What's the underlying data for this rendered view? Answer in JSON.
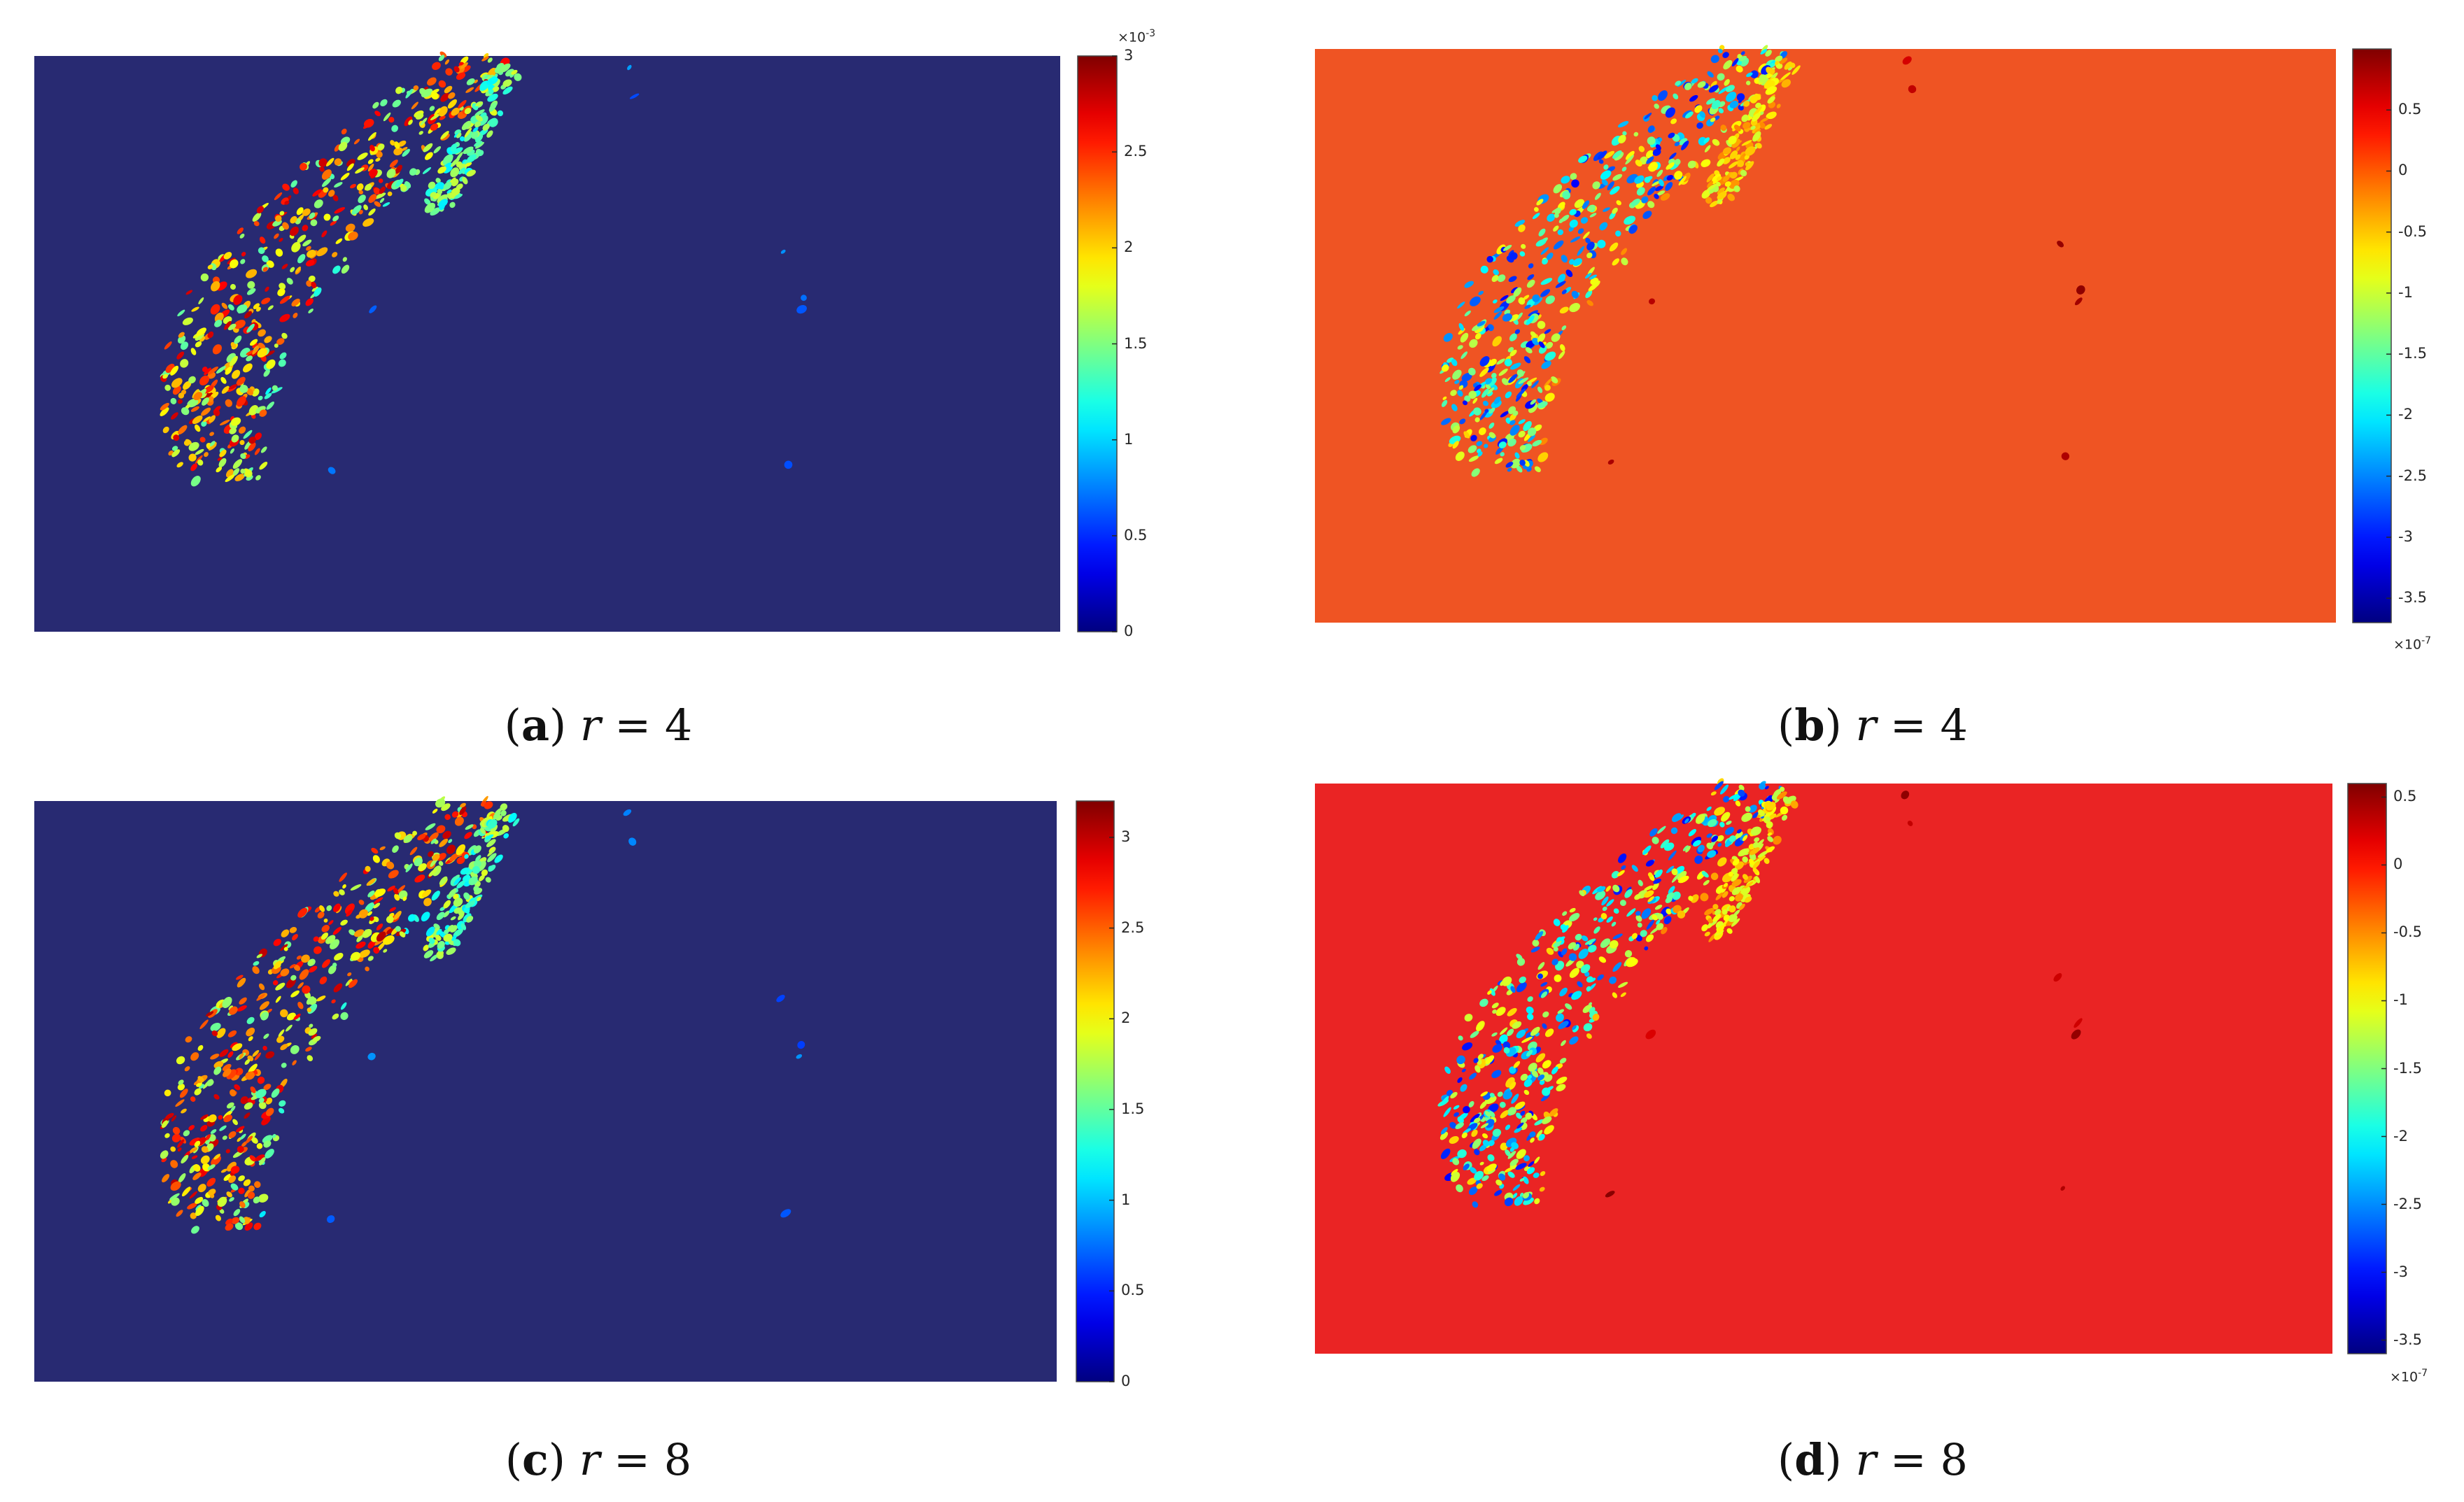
{
  "chart_data": [
    {
      "type": "heatmap",
      "panel": "a",
      "caption_letter": "a",
      "caption_param": "r",
      "caption_value": "4",
      "background_color": "#282a72",
      "colormap": "jet",
      "clim": [
        0,
        0.003
      ],
      "colorbar_exponent": "-3",
      "colorbar_ticks": [
        "0",
        "0.5",
        "1",
        "1.5",
        "2",
        "2.5",
        "3"
      ],
      "colorbar_tick_values": [
        0,
        0.5,
        1,
        1.5,
        2,
        2.5,
        3
      ]
    },
    {
      "type": "heatmap",
      "panel": "b",
      "caption_letter": "b",
      "caption_param": "r",
      "caption_value": "4",
      "background_color": "#ef5423",
      "colormap": "jet",
      "clim": [
        -3.7e-07,
        1e-07
      ],
      "colorbar_exponent": "-7",
      "colorbar_ticks": [
        "-3.5",
        "-3",
        "-2.5",
        "-2",
        "-1.5",
        "-1",
        "-0.5",
        "0",
        "0.5"
      ],
      "colorbar_tick_values": [
        -3.5,
        -3,
        -2.5,
        -2,
        -1.5,
        -1,
        -0.5,
        0,
        0.5
      ]
    },
    {
      "type": "heatmap",
      "panel": "c",
      "caption_letter": "c",
      "caption_param": "r",
      "caption_value": "8",
      "background_color": "#282a72",
      "colormap": "jet",
      "clim": [
        0,
        0.0032
      ],
      "colorbar_ticks": [
        "0",
        "0.5",
        "1",
        "1.5",
        "2",
        "2.5",
        "3"
      ],
      "colorbar_tick_values": [
        0,
        0.5,
        1,
        1.5,
        2,
        2.5,
        3
      ]
    },
    {
      "type": "heatmap",
      "panel": "d",
      "caption_letter": "d",
      "caption_param": "r",
      "caption_value": "8",
      "background_color": "#ea2424",
      "colormap": "jet",
      "clim": [
        -3.6e-07,
        6e-08
      ],
      "colorbar_exponent": "-7",
      "colorbar_ticks": [
        "-3.5",
        "-3",
        "-2.5",
        "-2",
        "-1.5",
        "-1",
        "-0.5",
        "0",
        "0.5"
      ],
      "colorbar_tick_values": [
        -3.5,
        -3,
        -2.5,
        -2,
        -1.5,
        -1,
        -0.5,
        0,
        0.5
      ]
    }
  ]
}
